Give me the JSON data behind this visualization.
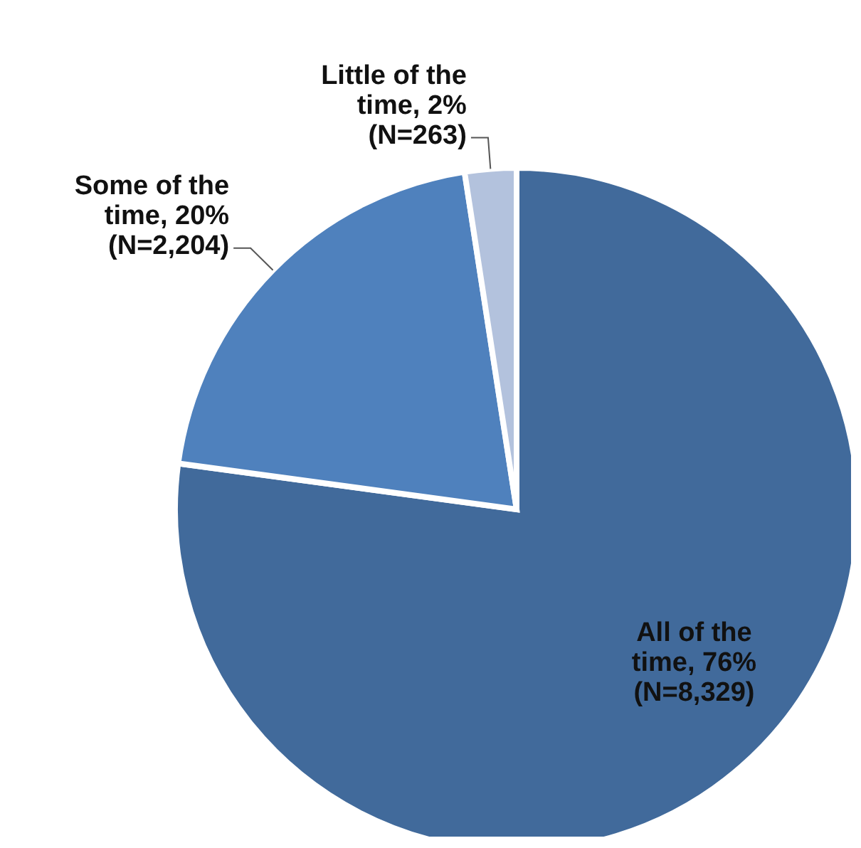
{
  "chart_data": {
    "type": "pie",
    "categories": [
      "All of the time",
      "Some of the time",
      "Little of the time"
    ],
    "values": [
      8329,
      2204,
      263
    ],
    "value_labels": [
      "76% (N=8,329)",
      "20% (N=2,204)",
      "2% (N=263)"
    ],
    "colors": [
      "#416a9b",
      "#4f81bd",
      "#b3c2dd"
    ],
    "legend": false
  }
}
